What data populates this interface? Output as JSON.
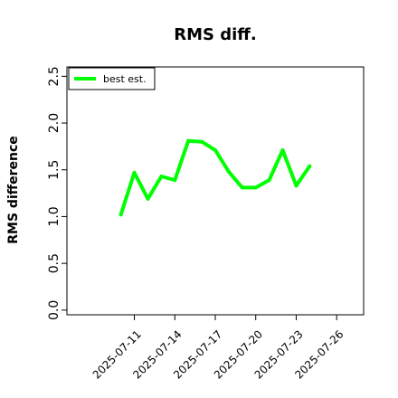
{
  "chart_data": {
    "type": "line",
    "title": "RMS diff.",
    "xlabel": "",
    "ylabel": "RMS difference",
    "x_ticks": [
      "2025-07-11",
      "2025-07-14",
      "2025-07-17",
      "2025-07-20",
      "2025-07-23",
      "2025-07-26"
    ],
    "y_ticks": [
      "0.0",
      "0.5",
      "1.0",
      "1.5",
      "2.0",
      "2.5"
    ],
    "xlim": [
      "2025-07-06",
      "2025-07-28"
    ],
    "ylim": [
      -0.05,
      2.6
    ],
    "grid": false,
    "legend_position": "top-left",
    "series": [
      {
        "name": "best est.",
        "color": "#00ff00",
        "x": [
          "2025-07-10",
          "2025-07-11",
          "2025-07-12",
          "2025-07-13",
          "2025-07-14",
          "2025-07-15",
          "2025-07-16",
          "2025-07-17",
          "2025-07-18",
          "2025-07-19",
          "2025-07-20",
          "2025-07-21",
          "2025-07-22",
          "2025-07-23",
          "2025-07-24"
        ],
        "y": [
          1.02,
          1.47,
          1.19,
          1.43,
          1.39,
          1.81,
          1.8,
          1.71,
          1.48,
          1.31,
          1.31,
          1.39,
          1.71,
          1.33,
          1.54
        ]
      }
    ]
  }
}
